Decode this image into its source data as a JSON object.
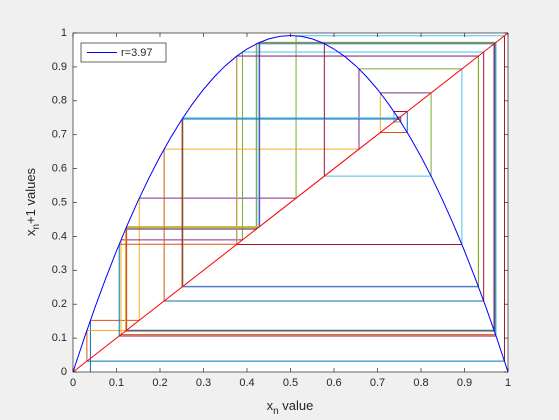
{
  "chart_data": {
    "type": "cobweb",
    "xlabel": {
      "base": "x",
      "subscript": "n",
      "after": " value"
    },
    "ylabel": {
      "base": "x",
      "subscript": "n",
      "after": "+1 values"
    },
    "xlim": [
      0,
      1
    ],
    "ylim": [
      0,
      1
    ],
    "xticks": [
      0,
      0.1,
      0.2,
      0.3,
      0.4,
      0.5,
      0.6,
      0.7,
      0.8,
      0.9,
      1
    ],
    "yticks": [
      0,
      0.1,
      0.2,
      0.3,
      0.4,
      0.5,
      0.6,
      0.7,
      0.8,
      0.9,
      1
    ],
    "legend": "upper left",
    "curve": {
      "name": "r=3.97",
      "color": "#0000ff",
      "x": [
        0,
        0.025,
        0.05,
        0.075,
        0.1,
        0.125,
        0.15,
        0.175,
        0.2,
        0.225,
        0.25,
        0.275,
        0.3,
        0.325,
        0.35,
        0.375,
        0.4,
        0.425,
        0.45,
        0.475,
        0.5,
        0.525,
        0.55,
        0.575,
        0.6,
        0.625,
        0.65,
        0.675,
        0.7,
        0.725,
        0.75,
        0.775,
        0.8,
        0.825,
        0.85,
        0.875,
        0.9,
        0.925,
        0.95,
        0.975,
        1
      ],
      "values": [
        0,
        0.0968,
        0.1886,
        0.2754,
        0.3573,
        0.4342,
        0.5062,
        0.5732,
        0.6352,
        0.6923,
        0.7444,
        0.7915,
        0.8337,
        0.8709,
        0.9032,
        0.9305,
        0.9528,
        0.9702,
        0.9826,
        0.99,
        0.9925,
        0.99,
        0.9826,
        0.9702,
        0.9528,
        0.9305,
        0.9032,
        0.8709,
        0.8337,
        0.7915,
        0.7444,
        0.6923,
        0.6352,
        0.5732,
        0.5062,
        0.4342,
        0.3573,
        0.2754,
        0.1886,
        0.0968,
        0
      ]
    },
    "diagonal": {
      "color": "#ff0000",
      "x": [
        0,
        1
      ],
      "values": [
        0,
        1
      ]
    },
    "cobweb": {
      "colors": [
        "#0072bd",
        "#d95319",
        "#edb120",
        "#7e2f8e",
        "#77ac30",
        "#4dbeee",
        "#a2142f"
      ],
      "values": [
        0.04,
        0.1524,
        0.5128,
        0.9919,
        0.0319,
        0.1226,
        0.4271,
        0.9714,
        0.1103,
        0.3896,
        0.9441,
        0.2095,
        0.6575,
        0.894,
        0.3762,
        0.9317,
        0.2526,
        0.7495,
        0.7454,
        0.7534,
        0.7376,
        0.7684,
        0.7065,
        0.8232,
        0.5778,
        0.9685,
        0.1211,
        0.4225,
        0.9686,
        0.1207,
        0.4213,
        0.9679,
        0.1233,
        0.4291,
        0.9725,
        0.1062,
        0.3768,
        0.9322,
        0.2509,
        0.7462,
        0.7519
      ]
    }
  }
}
